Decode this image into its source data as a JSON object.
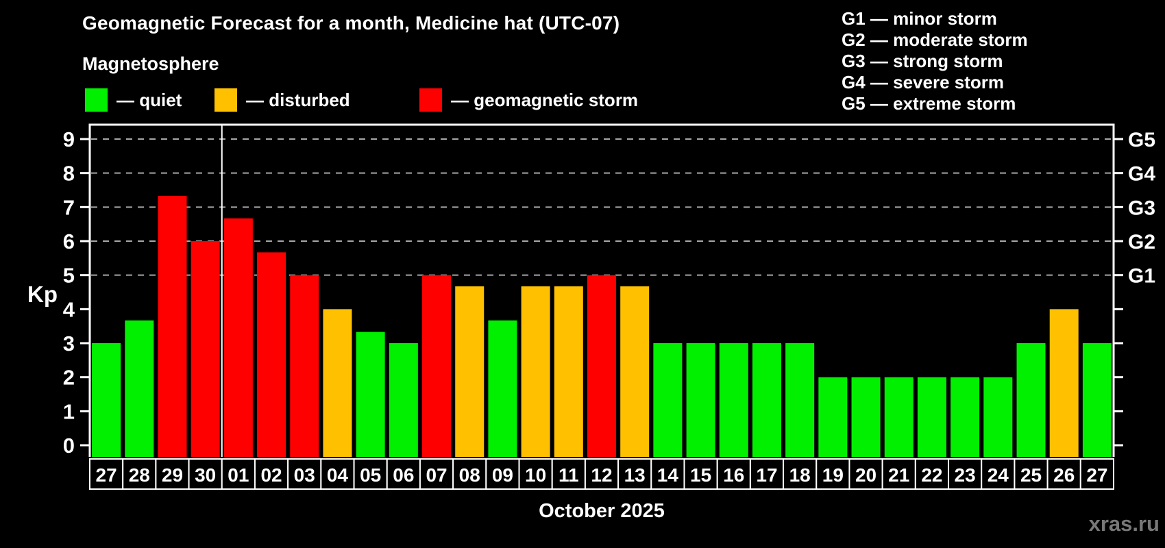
{
  "title": "Geomagnetic Forecast for a month, Medicine hat (UTC-07)",
  "subtitle": "Magnetosphere",
  "legend": {
    "items": [
      {
        "key": "quiet",
        "label": "— quiet"
      },
      {
        "key": "disturbed",
        "label": "— disturbed"
      },
      {
        "key": "storm",
        "label": "— geomagnetic storm"
      }
    ]
  },
  "g_legend": {
    "items": [
      "G1 — minor storm",
      "G2 — moderate storm",
      "G3 — strong storm",
      "G4 — severe storm",
      "G5 — extreme storm"
    ]
  },
  "axis": {
    "kp_label": "Kp",
    "y_ticks": [
      0,
      1,
      2,
      3,
      4,
      5,
      6,
      7,
      8,
      9
    ],
    "g_ticks": [
      {
        "kp": 5,
        "label": "G1"
      },
      {
        "kp": 6,
        "label": "G2"
      },
      {
        "kp": 7,
        "label": "G3"
      },
      {
        "kp": 8,
        "label": "G4"
      },
      {
        "kp": 9,
        "label": "G5"
      }
    ]
  },
  "x_axis": {
    "month_label": "October 2025"
  },
  "watermark": "xras.ru",
  "colors": {
    "background": "#000000",
    "text": "#ffffff",
    "frame": "#ffffff",
    "grid": "#a8a8a8",
    "watermark": "#787878",
    "quiet": "#00f000",
    "disturbed": "#ffc000",
    "storm": "#ff0000"
  },
  "chart_data": {
    "type": "bar",
    "title": "Geomagnetic Forecast for a month, Medicine hat (UTC-07)",
    "xlabel": "October 2025",
    "ylabel": "Kp",
    "ylim": [
      -0.35,
      9.4
    ],
    "grid_levels": [
      5,
      6,
      7,
      8,
      9
    ],
    "grid_style": "dashed, horizontal only",
    "legend_position": "top",
    "month_boundary_after_index": 3,
    "days": [
      "27",
      "28",
      "29",
      "30",
      "01",
      "02",
      "03",
      "04",
      "05",
      "06",
      "07",
      "08",
      "09",
      "10",
      "11",
      "12",
      "13",
      "14",
      "15",
      "16",
      "17",
      "18",
      "19",
      "20",
      "21",
      "22",
      "23",
      "24",
      "25",
      "26",
      "27"
    ],
    "values": [
      3,
      3.67,
      7.33,
      6,
      6.67,
      5.67,
      5,
      4,
      3.33,
      3,
      5,
      4.67,
      3.67,
      4.67,
      4.67,
      5,
      4.67,
      3,
      3,
      3,
      3,
      3,
      2,
      2,
      2,
      2,
      2,
      2,
      3,
      4,
      3
    ],
    "status": [
      "quiet",
      "quiet",
      "storm",
      "storm",
      "storm",
      "storm",
      "storm",
      "disturbed",
      "quiet",
      "quiet",
      "storm",
      "disturbed",
      "quiet",
      "disturbed",
      "disturbed",
      "storm",
      "disturbed",
      "quiet",
      "quiet",
      "quiet",
      "quiet",
      "quiet",
      "quiet",
      "quiet",
      "quiet",
      "quiet",
      "quiet",
      "quiet",
      "quiet",
      "disturbed",
      "quiet"
    ]
  }
}
